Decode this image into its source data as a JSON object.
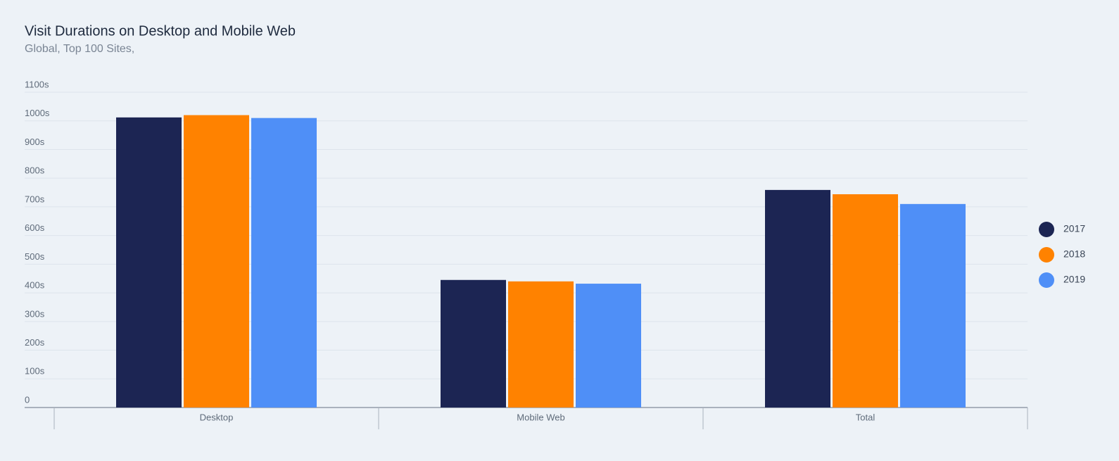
{
  "chart_data": {
    "type": "bar",
    "title": "Visit Durations on Desktop and Mobile Web",
    "subtitle": "Global, Top 100 Sites,",
    "categories": [
      "Desktop",
      "Mobile Web",
      "Total"
    ],
    "series": [
      {
        "name": "2017",
        "color": "#1c2553",
        "values": [
          1012,
          445,
          759
        ]
      },
      {
        "name": "2018",
        "color": "#ff8200",
        "values": [
          1020,
          440,
          744
        ]
      },
      {
        "name": "2019",
        "color": "#4f8ff7",
        "values": [
          1010,
          432,
          710
        ]
      }
    ],
    "ylim": [
      0,
      1100
    ],
    "yticks": [
      0,
      {
        "value": 100,
        "label": "100s"
      },
      {
        "value": 200,
        "label": "200s"
      },
      {
        "value": 300,
        "label": "300s"
      },
      {
        "value": 400,
        "label": "400s"
      },
      {
        "value": 500,
        "label": "500s"
      },
      {
        "value": 600,
        "label": "600s"
      },
      {
        "value": 700,
        "label": "700s"
      },
      {
        "value": 800,
        "label": "800s"
      },
      {
        "value": 900,
        "label": "900s"
      },
      {
        "value": 1000,
        "label": "1000s"
      },
      {
        "value": 1100,
        "label": "1100s"
      }
    ],
    "grid": true,
    "legend": "right"
  }
}
